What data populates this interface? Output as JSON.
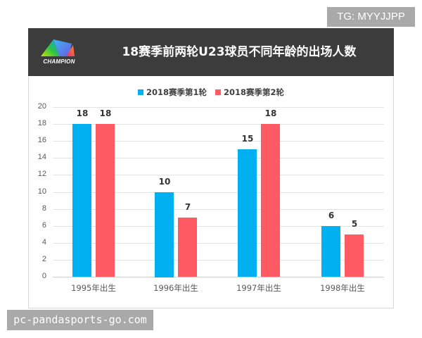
{
  "watermarks": {
    "top_right": "TG: MYYJJPP",
    "bottom_left": "pc-pandasports-go.com"
  },
  "header": {
    "logo_text": "CHAMPION",
    "title": "18赛季前两轮U23球员不同年龄的出场人数",
    "background": "#3c3c3c"
  },
  "legend": [
    {
      "label": "2018赛季第1轮",
      "color": "#00b0f0"
    },
    {
      "label": "2018赛季第2轮",
      "color": "#ff5a64"
    }
  ],
  "y_ticks": [
    "0",
    "2",
    "4",
    "6",
    "8",
    "10",
    "12",
    "14",
    "16",
    "18",
    "20"
  ],
  "chart_data": {
    "type": "bar",
    "title": "18赛季前两轮U23球员不同年龄的出场人数",
    "categories": [
      "1995年出生",
      "1996年出生",
      "1997年出生",
      "1998年出生"
    ],
    "series": [
      {
        "name": "2018赛季第1轮",
        "color": "#00b0f0",
        "values": [
          18,
          10,
          15,
          6
        ]
      },
      {
        "name": "2018赛季第2轮",
        "color": "#ff5a64",
        "values": [
          18,
          7,
          18,
          5
        ]
      }
    ],
    "xlabel": "",
    "ylabel": "",
    "ylim": [
      0,
      20
    ],
    "ytick_step": 2,
    "grid": true,
    "legend_position": "top",
    "data_labels": true
  }
}
